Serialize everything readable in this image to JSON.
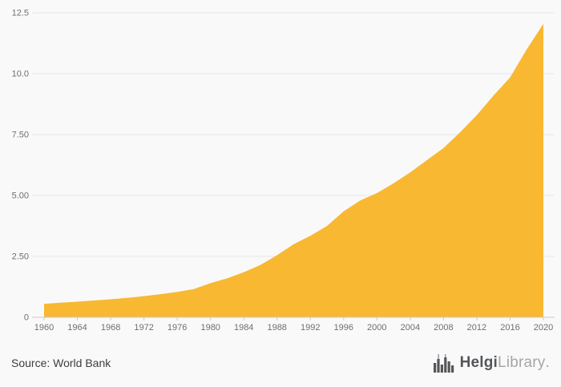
{
  "chart_data": {
    "type": "area",
    "title": "",
    "xlabel": "",
    "ylabel": "",
    "x": [
      1960,
      1962,
      1964,
      1966,
      1968,
      1970,
      1972,
      1974,
      1976,
      1978,
      1980,
      1982,
      1984,
      1986,
      1988,
      1990,
      1992,
      1994,
      1996,
      1998,
      2000,
      2002,
      2004,
      2006,
      2008,
      2010,
      2012,
      2014,
      2016,
      2018,
      2020
    ],
    "values": [
      0.55,
      0.6,
      0.64,
      0.69,
      0.74,
      0.8,
      0.87,
      0.95,
      1.04,
      1.16,
      1.4,
      1.6,
      1.85,
      2.15,
      2.55,
      3.0,
      3.35,
      3.75,
      4.35,
      4.8,
      5.1,
      5.5,
      5.95,
      6.45,
      6.95,
      7.6,
      8.3,
      9.1,
      9.85,
      11.0,
      12.05
    ],
    "ylim": [
      0,
      12.5
    ],
    "yticks": [
      0,
      2.5,
      5.0,
      7.5,
      10.0,
      12.5
    ],
    "ytick_labels": [
      "0",
      "2.50",
      "5.00",
      "7.50",
      "10.0",
      "12.5"
    ],
    "xticks": [
      1960,
      1964,
      1968,
      1972,
      1976,
      1980,
      1984,
      1988,
      1992,
      1996,
      2000,
      2004,
      2008,
      2012,
      2016,
      2020
    ],
    "area_color": "#f9b832",
    "grid_color": "#e6e6e6",
    "axis_color": "#cccccc",
    "tick_text_color": "#6f6f6f",
    "grid": true,
    "legend": "none"
  },
  "footer": {
    "source_label": "Source: World Bank",
    "brand": {
      "name_primary": "Helgi",
      "name_secondary": "Library",
      "suffix": "."
    }
  }
}
